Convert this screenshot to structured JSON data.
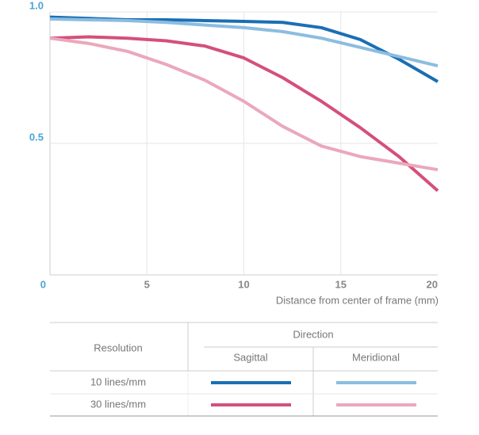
{
  "chart_data": {
    "type": "line",
    "x_label": "Distance from center of frame (mm)",
    "x": [
      0,
      2,
      4,
      6,
      8,
      10,
      12,
      14,
      16,
      18,
      20
    ],
    "xlim": [
      0,
      20
    ],
    "xticks": [
      0,
      5,
      10,
      15,
      20
    ],
    "ylim": [
      0,
      1
    ],
    "yticks": [
      0.5,
      {
        "value": 1,
        "label": "1.0"
      }
    ],
    "grid": true,
    "series": [
      {
        "color": "#1a6fb5",
        "values": [
          0.98,
          0.975,
          0.97,
          0.97,
          0.967,
          0.964,
          0.96,
          0.94,
          0.895,
          0.82,
          0.735
        ]
      },
      {
        "color": "#8bbde0",
        "values": [
          0.973,
          0.97,
          0.967,
          0.96,
          0.95,
          0.94,
          0.925,
          0.9,
          0.865,
          0.83,
          0.795
        ]
      },
      {
        "color": "#d4507a",
        "values": [
          0.9,
          0.905,
          0.9,
          0.89,
          0.87,
          0.825,
          0.75,
          0.66,
          0.56,
          0.45,
          0.32
        ]
      },
      {
        "color": "#eaa8bc",
        "values": [
          0.9,
          0.88,
          0.85,
          0.8,
          0.74,
          0.66,
          0.565,
          0.49,
          0.45,
          0.425,
          0.4
        ]
      }
    ],
    "legend": {
      "row_title": "Resolution",
      "column_title": "Direction",
      "columns": [
        "Sagittal",
        "Meridional"
      ],
      "rows": [
        "10 lines/mm",
        "30 lines/mm"
      ]
    }
  }
}
